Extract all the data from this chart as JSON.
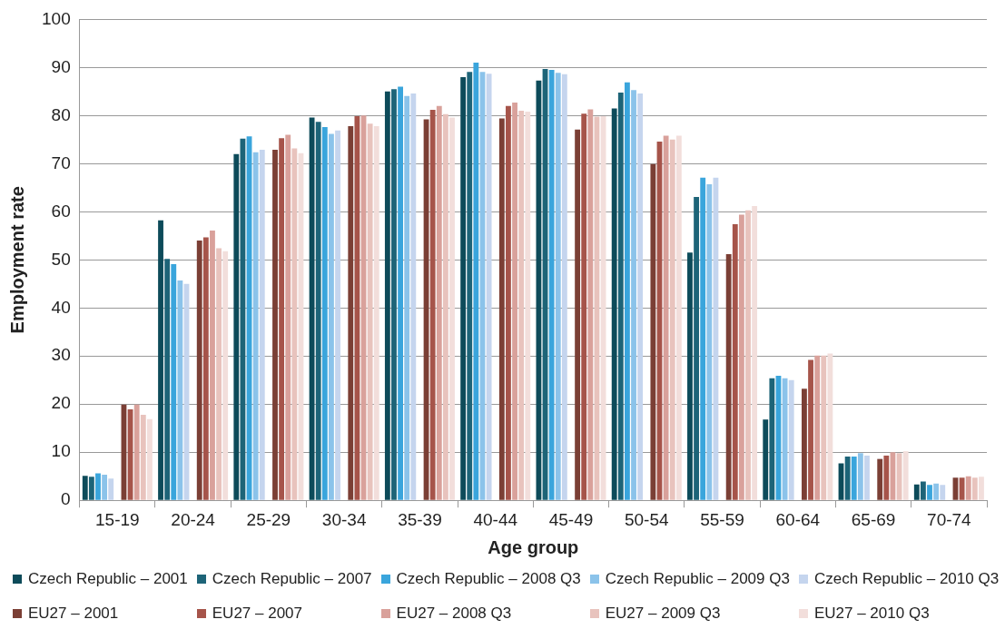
{
  "chart_data": {
    "type": "bar",
    "xlabel": "Age group",
    "ylabel": "Employment rate",
    "categories": [
      "15-19",
      "20-24",
      "25-29",
      "30-34",
      "35-39",
      "40-44",
      "45-49",
      "50-54",
      "55-59",
      "60-64",
      "65-69",
      "70-74"
    ],
    "ylim": [
      0,
      100
    ],
    "yticks": [
      0,
      10,
      20,
      30,
      40,
      50,
      60,
      70,
      80,
      90,
      100
    ],
    "grid": "y",
    "legend": "bottom",
    "series": [
      {
        "name": "Czech Republic – 2001",
        "color": "#0d4b5a",
        "values": [
          5.1,
          58.2,
          72.0,
          79.6,
          85.0,
          88.0,
          87.3,
          81.5,
          51.5,
          16.8,
          7.7,
          3.3
        ]
      },
      {
        "name": "Czech Republic – 2007",
        "color": "#1d6478",
        "values": [
          4.9,
          50.2,
          75.2,
          78.7,
          85.5,
          89.1,
          89.7,
          84.8,
          63.1,
          25.4,
          9.1,
          3.9
        ]
      },
      {
        "name": "Czech Republic – 2008 Q3",
        "color": "#3aa5dc",
        "values": [
          5.6,
          49.1,
          75.7,
          77.6,
          86.0,
          91.0,
          89.5,
          86.9,
          67.1,
          25.9,
          9.1,
          3.2
        ]
      },
      {
        "name": "Czech Republic – 2009 Q3",
        "color": "#8bc3ea",
        "values": [
          5.3,
          45.7,
          72.4,
          76.2,
          84.1,
          89.1,
          88.9,
          85.3,
          65.7,
          25.4,
          9.8,
          3.5
        ]
      },
      {
        "name": "Czech Republic – 2010 Q3",
        "color": "#c5d5ee",
        "values": [
          4.5,
          45.0,
          72.9,
          76.9,
          84.6,
          88.7,
          88.6,
          84.6,
          67.1,
          25.0,
          9.3,
          3.2
        ]
      },
      {
        "name": "EU27 – 2001",
        "color": "#7b3f35",
        "values": [
          19.9,
          54.0,
          72.9,
          77.8,
          79.2,
          79.4,
          77.1,
          69.9,
          51.2,
          23.2,
          8.6,
          4.7
        ]
      },
      {
        "name": "EU27 – 2007",
        "color": "#a6544a",
        "values": [
          18.9,
          54.7,
          75.3,
          79.9,
          81.2,
          82.0,
          80.4,
          74.6,
          57.4,
          29.2,
          9.3,
          4.7
        ]
      },
      {
        "name": "EU27 – 2008 Q3",
        "color": "#d9a19b",
        "values": [
          19.9,
          56.1,
          76.0,
          80.0,
          82.0,
          82.7,
          81.3,
          75.8,
          59.4,
          30.1,
          10.0,
          5.0
        ]
      },
      {
        "name": "EU27 – 2009 Q3",
        "color": "#e8c3bd",
        "values": [
          17.8,
          52.4,
          73.2,
          78.3,
          80.3,
          81.0,
          79.8,
          75.0,
          60.3,
          30.1,
          9.8,
          4.7
        ]
      },
      {
        "name": "EU27 – 2010 Q3",
        "color": "#f2dedb",
        "values": [
          16.9,
          51.8,
          72.2,
          77.8,
          79.6,
          80.8,
          79.9,
          75.8,
          61.2,
          30.5,
          10.2,
          4.9
        ]
      }
    ]
  }
}
